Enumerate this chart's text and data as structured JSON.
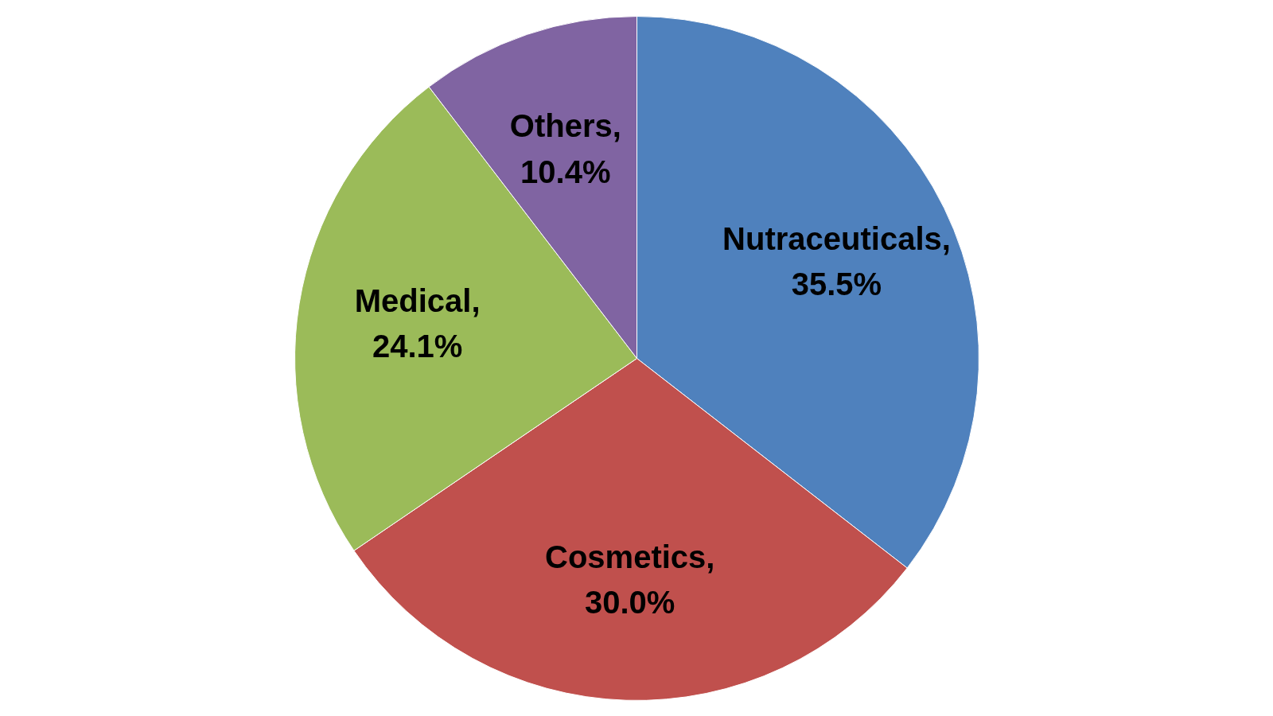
{
  "chart_data": {
    "type": "pie",
    "categories": [
      "Nutraceuticals",
      "Cosmetics",
      "Medical",
      "Others"
    ],
    "values": [
      35.5,
      30.0,
      24.1,
      10.4
    ],
    "colors": [
      "#4f81bd",
      "#c0504d",
      "#9bbb59",
      "#8064a2"
    ],
    "value_labels": [
      ", 35.5%",
      ", 30.0%",
      ", 24.1%",
      ", 10.4%"
    ]
  }
}
